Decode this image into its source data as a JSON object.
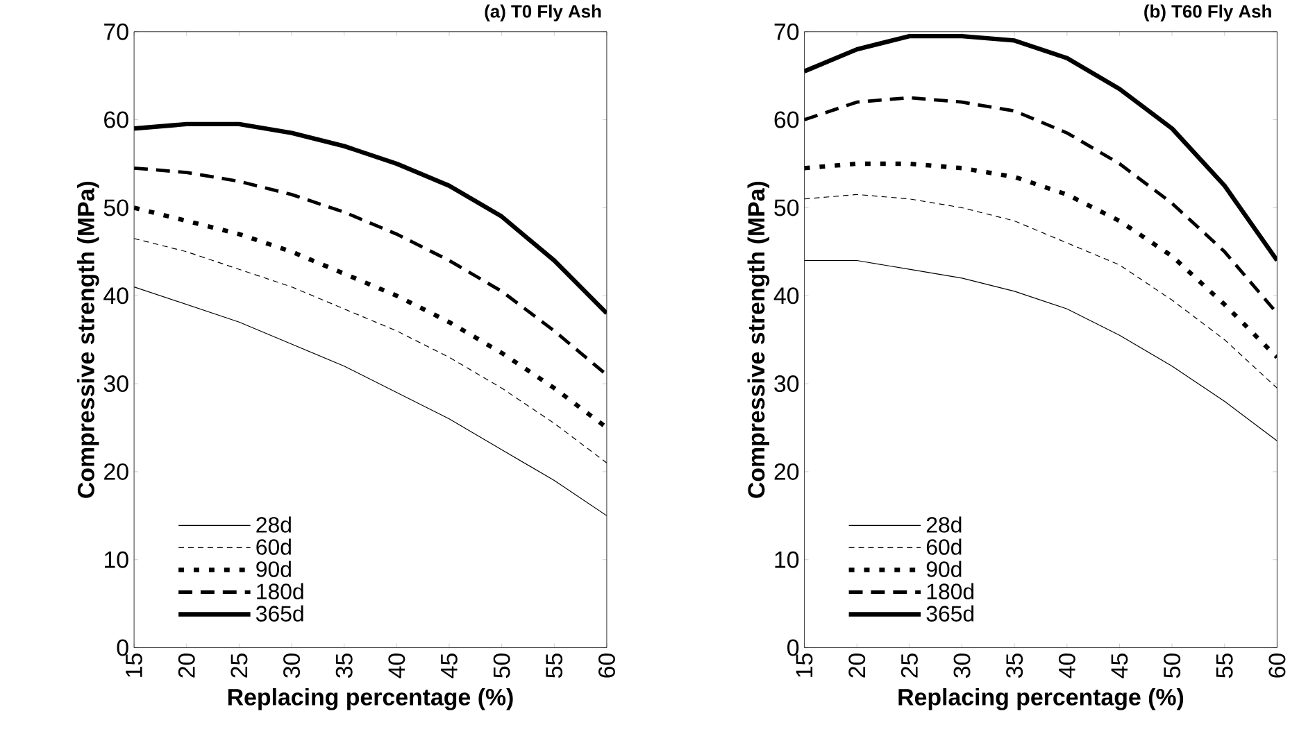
{
  "chart_data": [
    {
      "type": "line",
      "title": "(a) T0 Fly Ash",
      "xlabel": "Replacing percentage (%)",
      "ylabel": "Compressive strength (MPa)",
      "x": [
        15,
        20,
        25,
        30,
        35,
        40,
        45,
        50,
        55,
        60
      ],
      "xlim": [
        15,
        60
      ],
      "ylim": [
        0,
        70
      ],
      "xticks": [
        15,
        20,
        25,
        30,
        35,
        40,
        45,
        50,
        55,
        60
      ],
      "yticks": [
        0,
        10,
        20,
        30,
        40,
        50,
        60,
        70
      ],
      "legend": "bottom left",
      "series": [
        {
          "name": "28d",
          "color": "#000000",
          "line_style": "solid",
          "values": [
            41,
            39,
            37,
            34.5,
            32,
            29,
            26,
            22.5,
            19,
            15
          ]
        },
        {
          "name": "60d",
          "color": "#000000",
          "line_style": "dashed",
          "values": [
            46.5,
            45,
            43,
            41,
            38.5,
            36,
            33,
            29.5,
            25.5,
            21
          ]
        },
        {
          "name": "90d",
          "color": "#000000",
          "line_style": "dotted",
          "values": [
            50,
            48.5,
            47,
            45,
            42.5,
            40,
            37,
            33.5,
            29.5,
            25
          ]
        },
        {
          "name": "180d",
          "color": "#000000",
          "line_style": "dashed",
          "values": [
            54.5,
            54,
            53,
            51.5,
            49.5,
            47,
            44,
            40.5,
            36,
            31
          ]
        },
        {
          "name": "365d",
          "color": "#000000",
          "line_style": "solid",
          "values": [
            59,
            59.5,
            59.5,
            58.5,
            57,
            55,
            52.5,
            49,
            44,
            38
          ]
        }
      ]
    },
    {
      "type": "line",
      "title": "(b) T60 Fly Ash",
      "xlabel": "Replacing percentage (%)",
      "ylabel": "Compressive strength (MPa)",
      "x": [
        15,
        20,
        25,
        30,
        35,
        40,
        45,
        50,
        55,
        60
      ],
      "xlim": [
        15,
        60
      ],
      "ylim": [
        0,
        70
      ],
      "xticks": [
        15,
        20,
        25,
        30,
        35,
        40,
        45,
        50,
        55,
        60
      ],
      "yticks": [
        0,
        10,
        20,
        30,
        40,
        50,
        60,
        70
      ],
      "legend": "bottom left",
      "series": [
        {
          "name": "28d",
          "color": "#000000",
          "line_style": "solid",
          "values": [
            44,
            44,
            43,
            42,
            40.5,
            38.5,
            35.5,
            32,
            28,
            23.5
          ]
        },
        {
          "name": "60d",
          "color": "#000000",
          "line_style": "dashed",
          "values": [
            51,
            51.5,
            51,
            50,
            48.5,
            46,
            43.5,
            39.5,
            35,
            29.5
          ]
        },
        {
          "name": "90d",
          "color": "#000000",
          "line_style": "dotted",
          "values": [
            54.5,
            55,
            55,
            54.5,
            53.5,
            51.5,
            48.5,
            44.5,
            39,
            33
          ]
        },
        {
          "name": "180d",
          "color": "#000000",
          "line_style": "dashed",
          "values": [
            60,
            62,
            62.5,
            62,
            61,
            58.5,
            55,
            50.5,
            45,
            38
          ]
        },
        {
          "name": "365d",
          "color": "#000000",
          "line_style": "solid",
          "values": [
            65.5,
            68,
            69.5,
            69.5,
            69,
            67,
            63.5,
            59,
            52.5,
            44
          ]
        }
      ]
    }
  ]
}
